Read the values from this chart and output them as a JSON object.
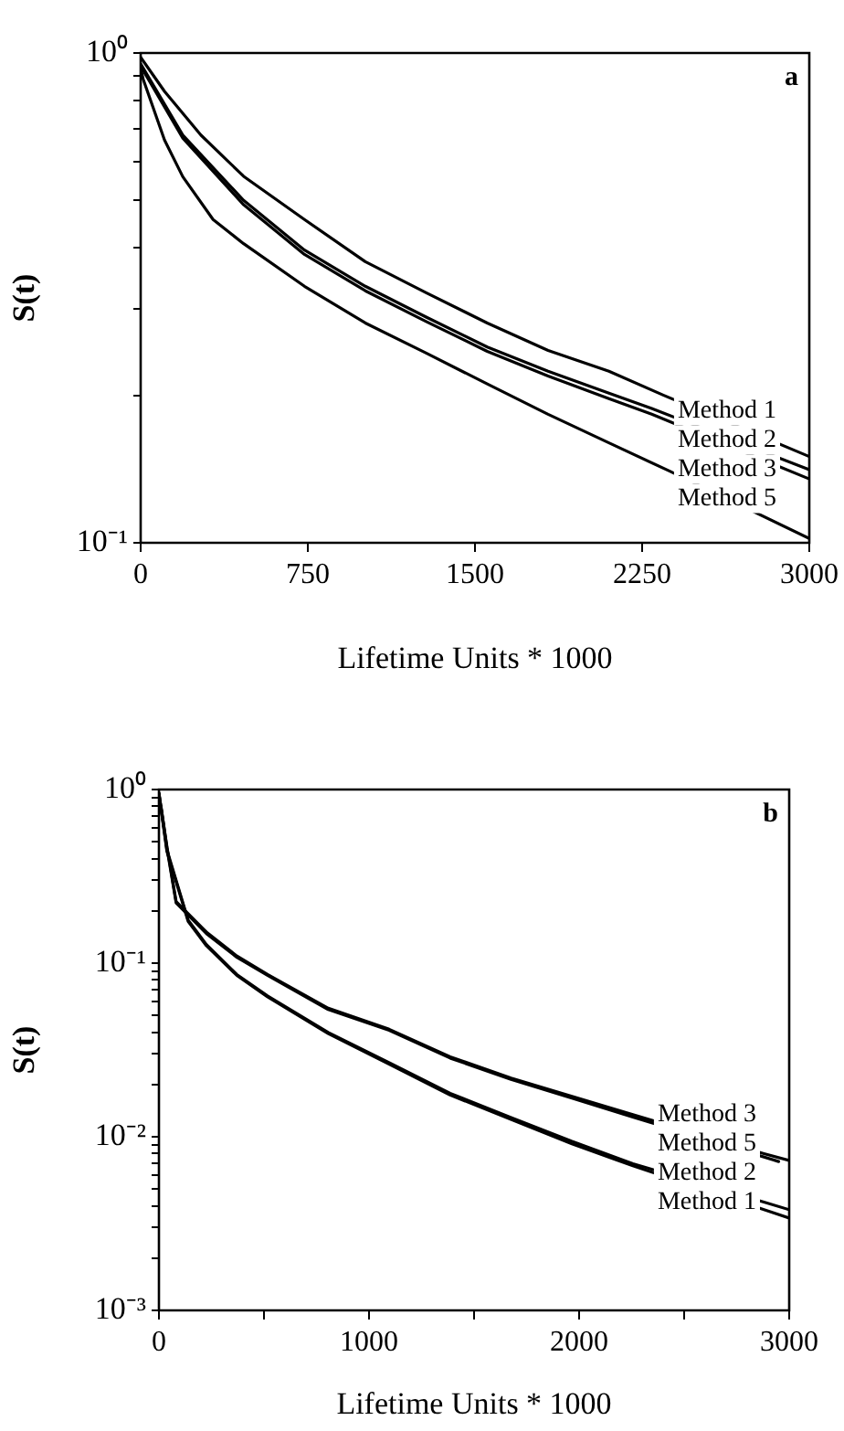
{
  "chart_data": [
    {
      "type": "line",
      "xlabel": "Lifetime Units * 1000",
      "ylabel": "S(t)",
      "annotations": [
        "a"
      ],
      "log": "y",
      "grid": false,
      "legend": false,
      "marker": "none",
      "line_style": "solid",
      "xlim": [
        0,
        3000
      ],
      "xticks": [
        0,
        750,
        1500,
        2250,
        3000
      ],
      "ylim": [
        0.1,
        1
      ],
      "yticks": [
        {
          "value": 0.1,
          "label": "10⁻¹"
        },
        {
          "value": 0.2,
          "label": null
        },
        {
          "value": 0.3,
          "label": null
        },
        {
          "value": 0.4,
          "label": null
        },
        {
          "value": 0.5,
          "label": null
        },
        {
          "value": 0.6,
          "label": null
        },
        {
          "value": 0.7,
          "label": null
        },
        {
          "value": 0.8,
          "label": null
        },
        {
          "value": 0.9,
          "label": null
        },
        {
          "value": 1,
          "label": "10⁰"
        }
      ],
      "series": [
        {
          "name": "Method 1",
          "color": "#000000",
          "x": [
            0,
            107,
            270,
            462,
            735,
            1008,
            1281,
            1555,
            1828,
            2101,
            2347,
            3000
          ],
          "values": [
            0.98,
            0.835,
            0.68,
            0.56,
            0.457,
            0.375,
            0.324,
            0.281,
            0.247,
            0.224,
            0.2,
            0.15
          ]
        },
        {
          "name": "Method 2",
          "color": "#000000",
          "x": [
            0,
            189,
            462,
            735,
            1008,
            1281,
            1555,
            1828,
            2101,
            2293,
            3000
          ],
          "values": [
            0.95,
            0.68,
            0.5,
            0.396,
            0.334,
            0.289,
            0.251,
            0.224,
            0.202,
            0.188,
            0.141
          ]
        },
        {
          "name": "Method 3",
          "color": "#000000",
          "x": [
            0,
            189,
            462,
            735,
            1008,
            1281,
            1555,
            1828,
            2101,
            2293,
            3000
          ],
          "values": [
            0.94,
            0.67,
            0.49,
            0.388,
            0.327,
            0.283,
            0.246,
            0.219,
            0.197,
            0.183,
            0.135
          ]
        },
        {
          "name": "Method 5",
          "color": "#000000",
          "x": [
            0,
            11,
            107,
            189,
            325,
            462,
            735,
            1008,
            1281,
            1555,
            1828,
            2101,
            2374,
            3000
          ],
          "values": [
            0.93,
            0.885,
            0.664,
            0.559,
            0.457,
            0.408,
            0.334,
            0.281,
            0.244,
            0.211,
            0.183,
            0.16,
            0.14,
            0.102
          ]
        }
      ]
    },
    {
      "type": "line",
      "xlabel": "Lifetime Units * 1000",
      "ylabel": "S(t)",
      "annotations": [
        "b"
      ],
      "log": "y",
      "grid": false,
      "legend": false,
      "marker": "none",
      "line_style": "solid",
      "xlim": [
        0,
        3000
      ],
      "xticks": [
        0,
        {
          "value": 500,
          "label": null
        },
        1000,
        {
          "value": 1500,
          "label": null
        },
        2000,
        {
          "value": 2500,
          "label": null
        },
        3000
      ],
      "ylim": [
        0.001,
        1
      ],
      "yticks": [
        {
          "value": 0.001,
          "label": "10⁻³"
        },
        {
          "value": 0.002,
          "label": null
        },
        {
          "value": 0.003,
          "label": null
        },
        {
          "value": 0.004,
          "label": null
        },
        {
          "value": 0.005,
          "label": null
        },
        {
          "value": 0.006,
          "label": null
        },
        {
          "value": 0.007,
          "label": null
        },
        {
          "value": 0.008,
          "label": null
        },
        {
          "value": 0.009,
          "label": null
        },
        {
          "value": 0.01,
          "label": "10⁻²"
        },
        {
          "value": 0.02,
          "label": null
        },
        {
          "value": 0.03,
          "label": null
        },
        {
          "value": 0.04,
          "label": null
        },
        {
          "value": 0.05,
          "label": null
        },
        {
          "value": 0.06,
          "label": null
        },
        {
          "value": 0.07,
          "label": null
        },
        {
          "value": 0.08,
          "label": null
        },
        {
          "value": 0.09,
          "label": null
        },
        {
          "value": 0.1,
          "label": "10⁻¹"
        },
        {
          "value": 0.2,
          "label": null
        },
        {
          "value": 0.3,
          "label": null
        },
        {
          "value": 0.4,
          "label": null
        },
        {
          "value": 0.5,
          "label": null
        },
        {
          "value": 0.6,
          "label": null
        },
        {
          "value": 0.7,
          "label": null
        },
        {
          "value": 0.8,
          "label": null
        },
        {
          "value": 0.9,
          "label": null
        },
        {
          "value": 1,
          "label": "10⁰"
        }
      ],
      "series": [
        {
          "name": "Method 3",
          "color": "#000000",
          "x": [
            0,
            38,
            82,
            226,
            371,
            517,
            806,
            1096,
            1386,
            1676,
            1966,
            2256,
            2880,
            3000
          ],
          "values": [
            0.95,
            0.47,
            0.226,
            0.151,
            0.11,
            0.086,
            0.055,
            0.0416,
            0.0289,
            0.0218,
            0.0171,
            0.0134,
            0.008,
            0.0073
          ]
        },
        {
          "name": "Method 5",
          "color": "#000000",
          "x": [
            10,
            38,
            82,
            226,
            371,
            517,
            806,
            1096,
            1386,
            1676,
            1966,
            2256,
            2950
          ],
          "values": [
            0.8,
            0.46,
            0.222,
            0.148,
            0.108,
            0.085,
            0.054,
            0.041,
            0.0284,
            0.0214,
            0.0167,
            0.013,
            0.0072
          ]
        },
        {
          "name": "Method 2",
          "color": "#000000",
          "x": [
            0,
            38,
            139,
            226,
            371,
            517,
            806,
            1096,
            1386,
            1676,
            1966,
            2256,
            2880,
            3000
          ],
          "values": [
            0.95,
            0.45,
            0.177,
            0.128,
            0.086,
            0.0648,
            0.0399,
            0.0267,
            0.0178,
            0.0129,
            0.0094,
            0.007,
            0.0042,
            0.0038
          ]
        },
        {
          "name": "Method 1",
          "color": "#000000",
          "x": [
            0,
            38,
            139,
            226,
            371,
            517,
            806,
            1096,
            1386,
            1676,
            1966,
            2256,
            2880,
            3000
          ],
          "values": [
            0.95,
            0.44,
            0.174,
            0.126,
            0.085,
            0.064,
            0.0393,
            0.0262,
            0.0174,
            0.0126,
            0.0091,
            0.0068,
            0.0038,
            0.0034
          ]
        }
      ]
    }
  ]
}
